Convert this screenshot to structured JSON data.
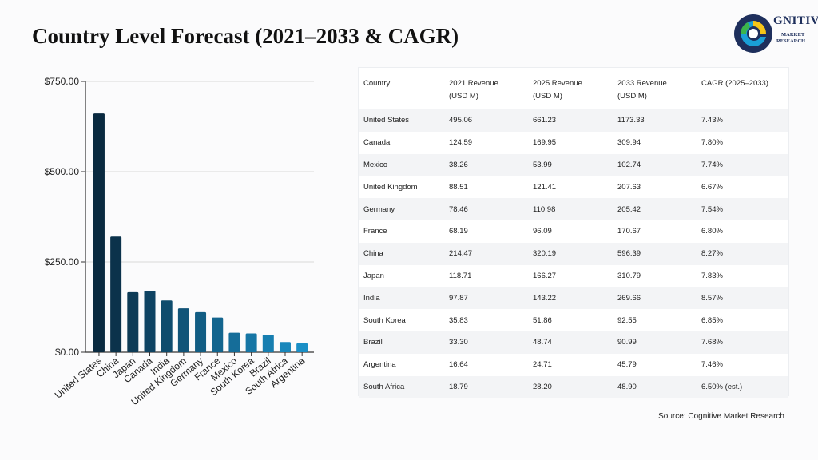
{
  "title": "Country Level Forecast (2021–2033 & CAGR)",
  "logo": {
    "main": "GNITIVE",
    "sub1": "MARKET",
    "sub2": "RESEARCH"
  },
  "source": "Source: Cognitive Market Research",
  "colors": {
    "bar_dark": "#0a2a40",
    "bar_light": "#1a8fc6",
    "logo_c": "#1e2f5c"
  },
  "chart_data": {
    "type": "bar",
    "categories": [
      "United States",
      "China",
      "Japan",
      "Canada",
      "India",
      "United Kingdom",
      "Germany",
      "France",
      "Mexico",
      "South Korea",
      "Brazil",
      "South Africa",
      "Argentina"
    ],
    "values": [
      661.23,
      320.19,
      166.27,
      169.95,
      143.22,
      121.41,
      110.98,
      96.09,
      53.99,
      51.86,
      48.74,
      28.2,
      24.71
    ],
    "yticks": [
      "$0.00",
      "$250.00",
      "$500.00",
      "$750.00"
    ],
    "yticks_values": [
      0,
      250,
      500,
      750
    ],
    "ylim": [
      0,
      750
    ],
    "grid": true
  },
  "table": {
    "headers": [
      [
        "Country"
      ],
      [
        "2021 Revenue",
        "(USD M)"
      ],
      [
        "2025 Revenue",
        "(USD M)"
      ],
      [
        "2033 Revenue",
        "(USD M)"
      ],
      [
        "CAGR (2025–2033)"
      ]
    ],
    "rows": [
      [
        "United States",
        "495.06",
        "661.23",
        "1173.33",
        "7.43%"
      ],
      [
        "Canada",
        "124.59",
        "169.95",
        "309.94",
        "7.80%"
      ],
      [
        "Mexico",
        "38.26",
        "53.99",
        "102.74",
        "7.74%"
      ],
      [
        "United Kingdom",
        "88.51",
        "121.41",
        "207.63",
        "6.67%"
      ],
      [
        "Germany",
        "78.46",
        "110.98",
        "205.42",
        "7.54%"
      ],
      [
        "France",
        "68.19",
        "96.09",
        "170.67",
        "6.80%"
      ],
      [
        "China",
        "214.47",
        "320.19",
        "596.39",
        "8.27%"
      ],
      [
        "Japan",
        "118.71",
        "166.27",
        "310.79",
        "7.83%"
      ],
      [
        "India",
        "97.87",
        "143.22",
        "269.66",
        "8.57%"
      ],
      [
        "South Korea",
        "35.83",
        "51.86",
        "92.55",
        "6.85%"
      ],
      [
        "Brazil",
        "33.30",
        "48.74",
        "90.99",
        "7.68%"
      ],
      [
        "Argentina",
        "16.64",
        "24.71",
        "45.79",
        "7.46%"
      ],
      [
        "South Africa",
        "18.79",
        "28.20",
        "48.90",
        "6.50% (est.)"
      ]
    ]
  }
}
